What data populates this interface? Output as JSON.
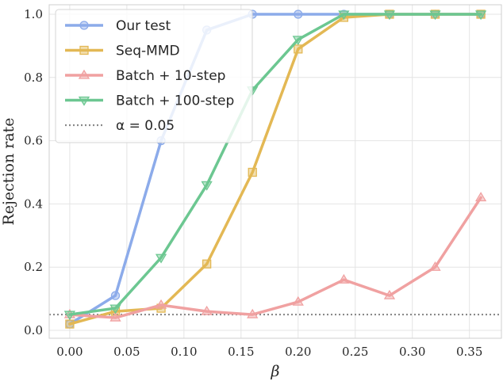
{
  "chart_data": {
    "type": "line",
    "xlabel": "β",
    "ylabel": "Rejection rate",
    "xlim": [
      -0.018,
      0.378
    ],
    "ylim": [
      -0.025,
      1.03
    ],
    "x_ticks": [
      0.0,
      0.05,
      0.1,
      0.15,
      0.2,
      0.25,
      0.3,
      0.35
    ],
    "x_tick_labels": [
      "0.00",
      "0.05",
      "0.10",
      "0.15",
      "0.20",
      "0.25",
      "0.30",
      "0.35"
    ],
    "y_ticks": [
      0.0,
      0.2,
      0.4,
      0.6,
      0.8,
      1.0
    ],
    "y_tick_labels": [
      "0.0",
      "0.2",
      "0.4",
      "0.6",
      "0.8",
      "1.0"
    ],
    "grid": true,
    "legend_position": "top-left",
    "x": [
      0.0,
      0.04,
      0.08,
      0.12,
      0.16,
      0.2,
      0.24,
      0.28,
      0.32,
      0.36
    ],
    "series": [
      {
        "name": "Our test",
        "color": "#8cabea",
        "marker": "circle",
        "values": [
          0.02,
          0.11,
          0.6,
          0.95,
          1.0,
          1.0,
          1.0,
          1.0,
          1.0,
          1.0
        ]
      },
      {
        "name": "Seq-MMD",
        "color": "#e3b854",
        "marker": "square",
        "values": [
          0.02,
          0.06,
          0.07,
          0.21,
          0.5,
          0.89,
          0.99,
          1.0,
          1.0,
          1.0
        ]
      },
      {
        "name": "Batch + 10-step",
        "color": "#f0a1a1",
        "marker": "triangle-up",
        "values": [
          0.05,
          0.04,
          0.08,
          0.06,
          0.05,
          0.09,
          0.16,
          0.11,
          0.2,
          0.42
        ]
      },
      {
        "name": "Batch + 100-step",
        "color": "#6cc791",
        "marker": "triangle-down",
        "values": [
          0.05,
          0.07,
          0.23,
          0.46,
          0.76,
          0.92,
          1.0,
          1.0,
          1.0,
          1.0
        ]
      }
    ],
    "reference_line": {
      "name": "α = 0.05",
      "value": 0.05,
      "color": "#8a8a8a",
      "style": "dotted"
    }
  }
}
